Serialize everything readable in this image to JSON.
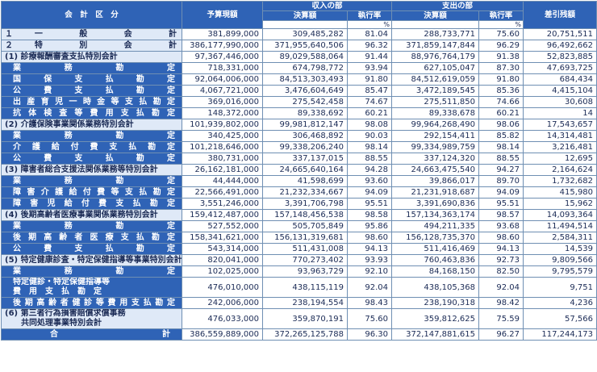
{
  "header": {
    "category": "会　計　区　分",
    "budget": "予算現額",
    "income_group": "収入の部",
    "expense_group": "支出の部",
    "settled": "決算額",
    "rate": "執行率",
    "balance": "差引残額",
    "pct": "%"
  },
  "rows": [
    {
      "label": "１　一　　般　　会　　計",
      "kind": "main",
      "budget": "381,899,000",
      "in_amt": "309,485,282",
      "in_rate": "81.04",
      "out_amt": "288,733,771",
      "out_rate": "75.60",
      "balance": "20,751,511"
    },
    {
      "label": "２　特　　別　　会　　計",
      "kind": "main",
      "budget": "386,177,990,000",
      "in_amt": "371,955,640,506",
      "in_rate": "96.32",
      "out_amt": "371,859,147,844",
      "out_rate": "96.29",
      "balance": "96,492,662"
    },
    {
      "label": "(1) 診療報酬審査支払特別会計",
      "kind": "group",
      "budget": "97,367,446,000",
      "in_amt": "89,029,588,064",
      "in_rate": "91.44",
      "out_amt": "88,976,764,179",
      "out_rate": "91.38",
      "balance": "52,823,885"
    },
    {
      "label": "業　　務　　勘　　定",
      "kind": "sub",
      "budget": "718,331,000",
      "in_amt": "674,798,772",
      "in_rate": "93.94",
      "out_amt": "627,105,047",
      "out_rate": "87.30",
      "balance": "47,693,725"
    },
    {
      "label": "国　保　支　払　勘　定",
      "kind": "sub",
      "budget": "92,064,006,000",
      "in_amt": "84,513,303,493",
      "in_rate": "91.80",
      "out_amt": "84,512,619,059",
      "out_rate": "91.80",
      "balance": "684,434"
    },
    {
      "label": "公　費　支　払　勘　定",
      "kind": "sub",
      "budget": "4,067,721,000",
      "in_amt": "3,476,604,649",
      "in_rate": "85.47",
      "out_amt": "3,472,189,545",
      "out_rate": "85.36",
      "balance": "4,415,104"
    },
    {
      "label": "出産育児一時金等支払勘定",
      "kind": "sub",
      "budget": "369,016,000",
      "in_amt": "275,542,458",
      "in_rate": "74.67",
      "out_amt": "275,511,850",
      "out_rate": "74.66",
      "balance": "30,608"
    },
    {
      "label": "抗体検査等費用支払勘定",
      "kind": "sub",
      "budget": "148,372,000",
      "in_amt": "89,338,692",
      "in_rate": "60.21",
      "out_amt": "89,338,678",
      "out_rate": "60.21",
      "balance": "14"
    },
    {
      "label": "(2) 介護保険事業関係業務特別会計",
      "kind": "group",
      "budget": "101,939,802,000",
      "in_amt": "99,981,812,147",
      "in_rate": "98.08",
      "out_amt": "99,964,268,490",
      "out_rate": "98.06",
      "balance": "17,543,657"
    },
    {
      "label": "業　　務　　勘　　定",
      "kind": "sub",
      "budget": "340,425,000",
      "in_amt": "306,468,892",
      "in_rate": "90.03",
      "out_amt": "292,154,411",
      "out_rate": "85.82",
      "balance": "14,314,481"
    },
    {
      "label": "介　護　給　付　費　支　払　勘　定",
      "kind": "sub",
      "budget": "101,218,646,000",
      "in_amt": "99,338,206,240",
      "in_rate": "98.14",
      "out_amt": "99,334,989,759",
      "out_rate": "98.14",
      "balance": "3,216,481"
    },
    {
      "label": "公　費　支　払　勘　定",
      "kind": "sub",
      "budget": "380,731,000",
      "in_amt": "337,137,015",
      "in_rate": "88.55",
      "out_amt": "337,124,320",
      "out_rate": "88.55",
      "balance": "12,695"
    },
    {
      "label": "(3) 障害者総合支援法関係業務等特別会計",
      "kind": "group",
      "budget": "26,162,181,000",
      "in_amt": "24,665,640,164",
      "in_rate": "94.28",
      "out_amt": "24,663,475,540",
      "out_rate": "94.27",
      "balance": "2,164,624"
    },
    {
      "label": "業　　務　　勘　　定",
      "kind": "sub",
      "budget": "44,444,000",
      "in_amt": "41,598,699",
      "in_rate": "93.60",
      "out_amt": "39,866,017",
      "out_rate": "89.70",
      "balance": "1,732,682"
    },
    {
      "label": "障害介護給付費等支払勘定",
      "kind": "sub",
      "budget": "22,566,491,000",
      "in_amt": "21,232,334,667",
      "in_rate": "94.09",
      "out_amt": "21,231,918,687",
      "out_rate": "94.09",
      "balance": "415,980"
    },
    {
      "label": "障害児給付費支払勘定",
      "kind": "sub",
      "budget": "3,551,246,000",
      "in_amt": "3,391,706,798",
      "in_rate": "95.51",
      "out_amt": "3,391,690,836",
      "out_rate": "95.51",
      "balance": "15,962"
    },
    {
      "label": "(4) 後期高齢者医療事業関係業務特別会計",
      "kind": "group",
      "budget": "159,412,487,000",
      "in_amt": "157,148,456,538",
      "in_rate": "98.58",
      "out_amt": "157,134,363,174",
      "out_rate": "98.57",
      "balance": "14,093,364"
    },
    {
      "label": "業　　務　　勘　　定",
      "kind": "sub",
      "budget": "527,552,000",
      "in_amt": "505,705,849",
      "in_rate": "95.86",
      "out_amt": "494,211,335",
      "out_rate": "93.68",
      "balance": "11,494,514"
    },
    {
      "label": "後期高齢者医療支払勘定",
      "kind": "sub",
      "budget": "158,341,621,000",
      "in_amt": "156,131,319,681",
      "in_rate": "98.60",
      "out_amt": "156,128,735,370",
      "out_rate": "98.60",
      "balance": "2,584,311"
    },
    {
      "label": "公　費　支　払　勘　定",
      "kind": "sub",
      "budget": "543,314,000",
      "in_amt": "511,431,008",
      "in_rate": "94.13",
      "out_amt": "511,416,469",
      "out_rate": "94.13",
      "balance": "14,539"
    },
    {
      "label": "(5) 特定健康診査・特定保健指導等事業特別会計",
      "kind": "group",
      "budget": "820,041,000",
      "in_amt": "770,273,402",
      "in_rate": "93.93",
      "out_amt": "760,463,836",
      "out_rate": "92.73",
      "balance": "9,809,566"
    },
    {
      "label": "業　　務　　勘　　定",
      "kind": "sub",
      "budget": "102,025,000",
      "in_amt": "93,963,729",
      "in_rate": "92.10",
      "out_amt": "84,168,150",
      "out_rate": "82.50",
      "balance": "9,795,579"
    },
    {
      "label": "特定健診・特定保健指導等\n費　用　支　払　勘　定",
      "kind": "subtall",
      "budget": "476,010,000",
      "in_amt": "438,115,119",
      "in_rate": "92.04",
      "out_amt": "438,105,368",
      "out_rate": "92.04",
      "balance": "9,751"
    },
    {
      "label": "後期高齢者健診等費用支払勘定",
      "kind": "sub",
      "budget": "242,006,000",
      "in_amt": "238,194,554",
      "in_rate": "98.43",
      "out_amt": "238,190,318",
      "out_rate": "98.42",
      "balance": "4,236"
    },
    {
      "label": "(6) 第三者行為損害賠償求償事務\n　　共同処理事業特別会計",
      "kind": "grouptall",
      "budget": "476,033,000",
      "in_amt": "359,870,191",
      "in_rate": "75.60",
      "out_amt": "359,812,625",
      "out_rate": "75.59",
      "balance": "57,566"
    },
    {
      "label": "合　　　　　計",
      "kind": "total",
      "budget": "386,559,889,000",
      "in_amt": "372,265,125,788",
      "in_rate": "96.30",
      "out_amt": "372,147,881,615",
      "out_rate": "96.27",
      "balance": "117,244,173"
    }
  ]
}
